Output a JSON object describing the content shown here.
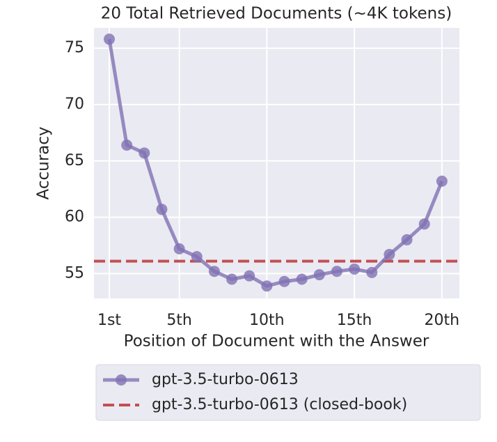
{
  "chart_data": {
    "type": "line",
    "title": "20 Total Retrieved Documents (~4K tokens)",
    "x_label": "Position of Document with the Answer",
    "y_label": "Accuracy",
    "x": [
      1,
      2,
      3,
      4,
      5,
      6,
      7,
      8,
      9,
      10,
      11,
      12,
      13,
      14,
      15,
      16,
      17,
      18,
      19,
      20
    ],
    "series": [
      {
        "name": "gpt-3.5-turbo-0613",
        "color": "#8172b3",
        "values": [
          75.8,
          66.4,
          65.7,
          60.7,
          57.2,
          56.5,
          55.2,
          54.5,
          54.8,
          53.9,
          54.3,
          54.5,
          54.9,
          55.2,
          55.4,
          55.1,
          56.7,
          58.0,
          59.4,
          63.2
        ]
      }
    ],
    "reference_lines": [
      {
        "name": "gpt-3.5-turbo-0613 (closed-book)",
        "color": "#c44e52",
        "value": 56.1
      }
    ],
    "xlim": [
      0.125,
      21
    ],
    "xticks": [
      {
        "value": 1,
        "label": "1st"
      },
      {
        "value": 5,
        "label": "5th"
      },
      {
        "value": 10,
        "label": "10th"
      },
      {
        "value": 15,
        "label": "15th"
      },
      {
        "value": 20,
        "label": "20th"
      }
    ],
    "ylim": [
      52.8,
      76.8
    ],
    "yticks": [
      55,
      60,
      65,
      70,
      75
    ],
    "grid": true
  }
}
